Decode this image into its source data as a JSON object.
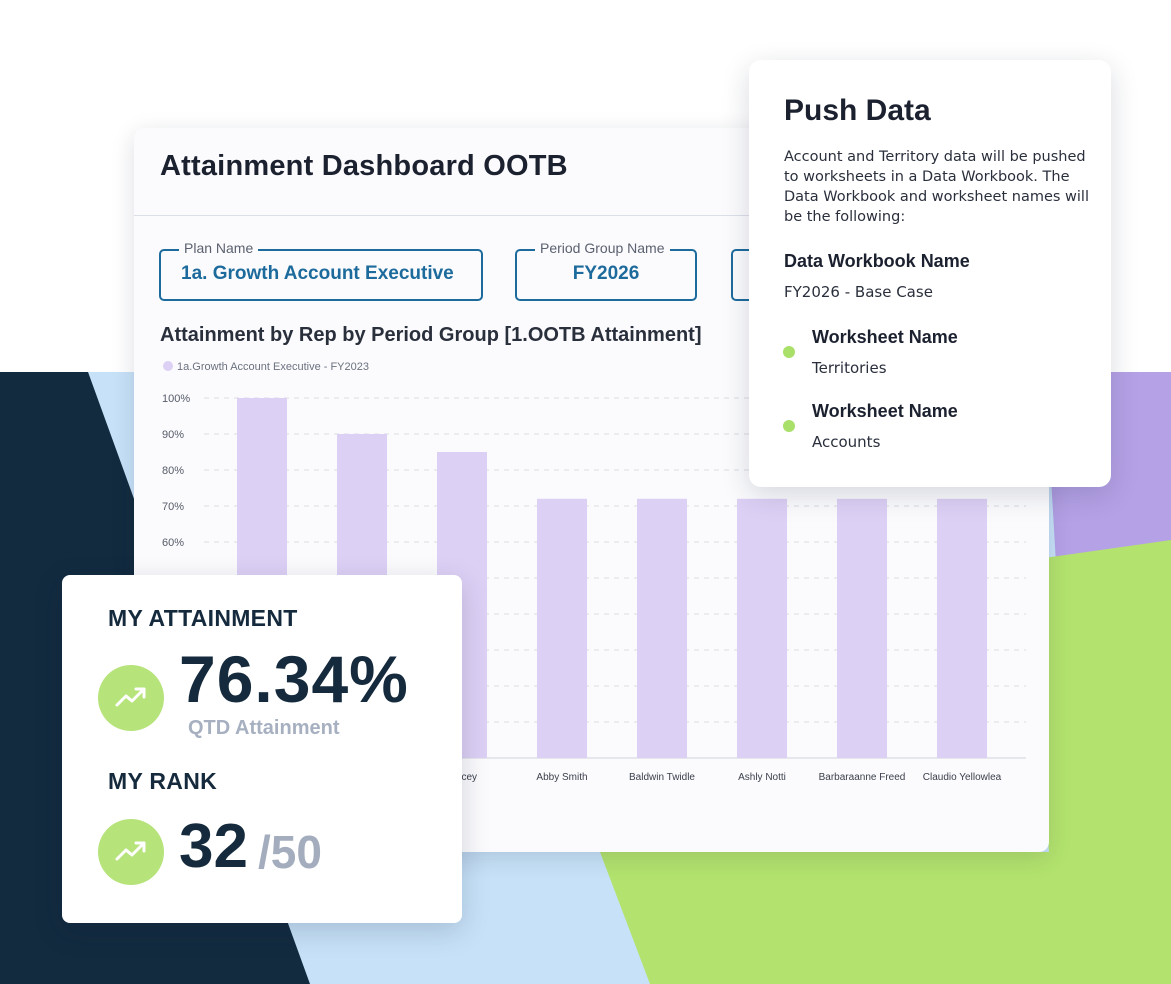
{
  "dashboard": {
    "title": "Attainment Dashboard OOTB",
    "filters": [
      {
        "label": "Plan Name",
        "value": "1a. Growth Account Executive"
      },
      {
        "label": "Period Group Name",
        "value": "FY2026"
      }
    ],
    "chart_title": "Attainment by Rep by Period Group [1.OOTB Attainment]"
  },
  "chart_data": {
    "type": "bar",
    "series": [
      {
        "name": "1a.Growth Account Executive - FY2023",
        "color": "#ddd0f5"
      }
    ],
    "categories": [
      "",
      "",
      "Kelcey",
      "Abby Smith",
      "Baldwin Twidle",
      "Ashly Notti",
      "Barbaraanne Freed",
      "Claudio Yellowlea"
    ],
    "values": [
      100,
      90,
      85,
      72,
      72,
      72,
      72,
      72
    ],
    "y_ticks": [
      "100%",
      "90%",
      "80%",
      "70%",
      "60%"
    ],
    "ylim": [
      0,
      100
    ],
    "grid": true,
    "grid_style": "dashed",
    "legend_position": "top-left"
  },
  "push_data": {
    "title": "Push Data",
    "description": "Account and Territory data will be pushed to worksheets in a Data Workbook. The Data Workbook and worksheet names will be the following:",
    "workbook_heading": "Data Workbook Name",
    "workbook_value": "FY2026 - Base Case",
    "worksheets": [
      {
        "heading": "Worksheet Name",
        "value": "Territories"
      },
      {
        "heading": "Worksheet Name",
        "value": "Accounts"
      }
    ]
  },
  "attainment": {
    "heading": "MY ATTAINMENT",
    "value": "76.34%",
    "caption": "QTD Attainment",
    "rank_heading": "MY RANK",
    "rank_value": "32",
    "rank_total": "/50",
    "icon": "trending-up-icon"
  },
  "colors": {
    "navy": "#122b3f",
    "light_blue": "#c7e2f8",
    "green": "#b3e36e",
    "purple": "#b5a1e6",
    "bar": "#ddd0f5",
    "accent_blue": "#1d6b9c"
  }
}
